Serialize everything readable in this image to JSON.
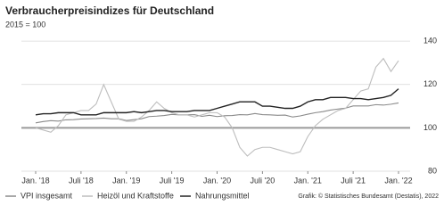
{
  "chart_data": {
    "type": "line",
    "title": "Verbraucherpreisindizes für Deutschland",
    "subtitle": "2015 = 100",
    "source": "Grafik: © Statistisches Bundesamt (Destatis), 2022",
    "categories": [
      "Jan. '18",
      null,
      null,
      null,
      null,
      null,
      "Juli '18",
      null,
      null,
      null,
      null,
      null,
      "Jan. '19",
      null,
      null,
      null,
      null,
      null,
      "Juli '19",
      null,
      null,
      null,
      null,
      null,
      "Jan. '20",
      null,
      null,
      null,
      null,
      null,
      "Juli '20",
      null,
      null,
      null,
      null,
      null,
      "Jan. '21",
      null,
      null,
      null,
      null,
      null,
      "Juli '21",
      null,
      null,
      null,
      null,
      null,
      "Jan. '22"
    ],
    "series": [
      {
        "name": "VPI insgesamt",
        "color": "#8a8a8a",
        "values": [
          102.3,
          102.9,
          103.3,
          103.1,
          103.7,
          103.8,
          104.1,
          104.2,
          104.3,
          104.5,
          104.2,
          104.2,
          103.4,
          103.8,
          104.2,
          105.2,
          105.4,
          105.7,
          106.2,
          106.0,
          106.0,
          106.1,
          105.3,
          105.8,
          105.2,
          105.6,
          105.7,
          106.1,
          106.0,
          106.6,
          106.1,
          106.0,
          105.8,
          105.9,
          105.0,
          105.5,
          106.3,
          107.0,
          107.5,
          108.2,
          108.7,
          109.1,
          110.1,
          110.1,
          110.1,
          110.7,
          110.5,
          110.9,
          111.5
        ]
      },
      {
        "name": "Heizöl und Kraftstoffe",
        "color": "#bdbdbd",
        "values": [
          100,
          99,
          98,
          101,
          106,
          107,
          108,
          108,
          111,
          120,
          112,
          104,
          103,
          103,
          105,
          108,
          112,
          109,
          107,
          106,
          106,
          105,
          106,
          107,
          107,
          105,
          100,
          91,
          87,
          90,
          91,
          91,
          90,
          89,
          88,
          89,
          96,
          101,
          104,
          106,
          108,
          109,
          113,
          117,
          118,
          128,
          132,
          126,
          131
        ]
      },
      {
        "name": "Nahrungsmittel",
        "color": "#222222",
        "values": [
          106,
          106.5,
          106.5,
          107,
          107,
          107,
          106,
          106,
          106,
          107,
          107,
          107,
          107,
          107.5,
          107,
          107.5,
          108,
          108,
          107.5,
          107.5,
          107.5,
          108,
          108,
          108,
          109,
          110,
          111,
          112,
          112,
          112,
          110,
          110,
          109.5,
          109,
          109,
          110,
          112,
          113,
          113,
          114,
          114,
          114,
          113.5,
          113.5,
          113,
          113.5,
          114,
          115,
          118
        ]
      }
    ],
    "ylim": [
      80,
      145
    ],
    "yticks": [
      80,
      100,
      120,
      140
    ],
    "baseline": 100,
    "grid": true
  }
}
